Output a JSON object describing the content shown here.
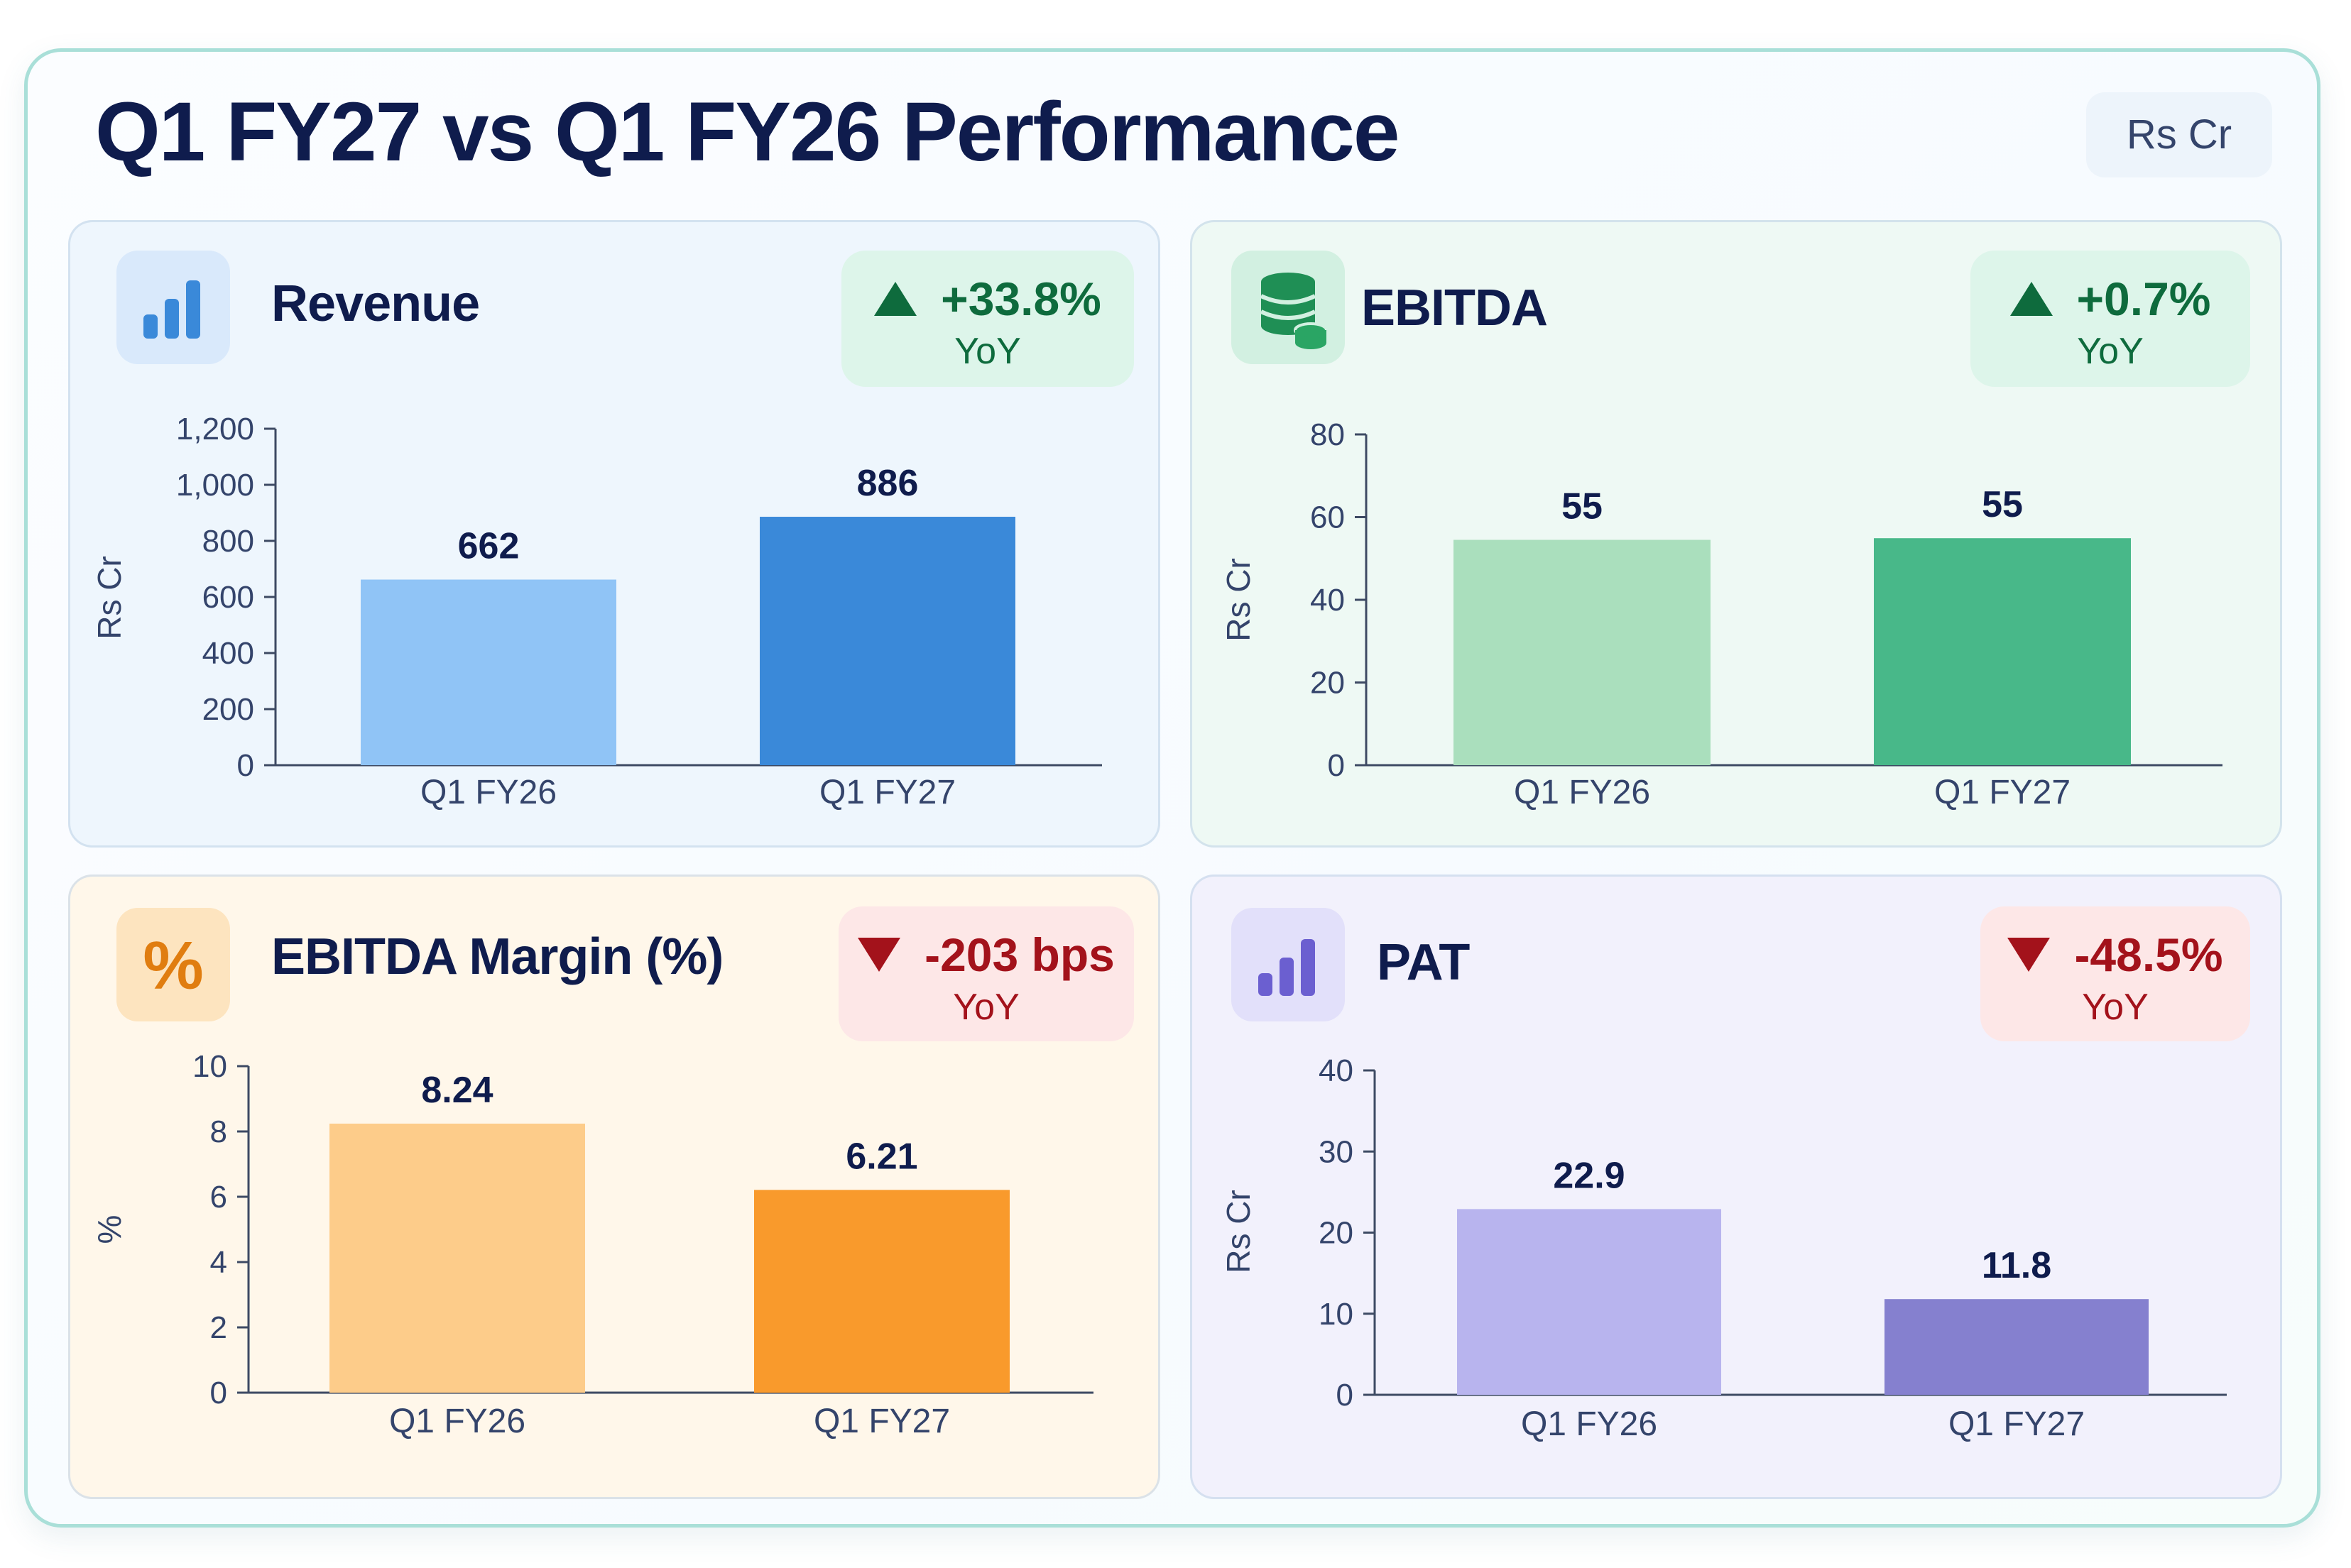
{
  "header": {
    "title": "Q1 FY27  vs Q1 FY26 Performance",
    "unit_badge": "Rs Cr"
  },
  "panels": [
    {
      "title": "Revenue",
      "icon": "bar-chart-icon",
      "change": "+33.8%",
      "change_sub": "YoY",
      "direction": "up"
    },
    {
      "title": "EBITDA",
      "icon": "coin-stack-icon",
      "change": "+0.7%",
      "change_sub": "YoY",
      "direction": "up"
    },
    {
      "title": "EBITDA Margin (%)",
      "icon": "percent-icon",
      "change": "-203 bps",
      "change_sub": "YoY",
      "direction": "down"
    },
    {
      "title": "PAT",
      "icon": "bar-chart-icon",
      "change": "-48.5%",
      "change_sub": "YoY",
      "direction": "down"
    }
  ],
  "chart_data": [
    {
      "type": "bar",
      "title": "Revenue",
      "categories": [
        "Q1 FY26",
        "Q1 FY27"
      ],
      "values": [
        662,
        886
      ],
      "value_labels": [
        "662",
        "886"
      ],
      "ylabel": "Rs Cr",
      "ylim": [
        0,
        1200
      ],
      "yticks": [
        0,
        200,
        400,
        600,
        800,
        1000,
        1200
      ],
      "ytick_labels": [
        "0",
        "200",
        "400",
        "600",
        "800",
        "1,000",
        "1,200"
      ],
      "colors": [
        "#90c4f6",
        "#3a89d9"
      ],
      "grid": false
    },
    {
      "type": "bar",
      "title": "EBITDA",
      "categories": [
        "Q1 FY26",
        "Q1 FY27"
      ],
      "values": [
        54.5,
        54.9
      ],
      "value_labels": [
        "55",
        "55"
      ],
      "ylabel": "Rs Cr",
      "ylim": [
        0,
        80
      ],
      "yticks": [
        0,
        20,
        40,
        60,
        80
      ],
      "ytick_labels": [
        "0",
        "20",
        "40",
        "60",
        "80"
      ],
      "colors": [
        "#aadfbd",
        "#48b889"
      ],
      "grid": false
    },
    {
      "type": "bar",
      "title": "EBITDA Margin (%)",
      "categories": [
        "Q1 FY26",
        "Q1 FY27"
      ],
      "values": [
        8.24,
        6.21
      ],
      "value_labels": [
        "8.24",
        "6.21"
      ],
      "ylabel": "%",
      "ylim": [
        0,
        10
      ],
      "yticks": [
        0,
        2,
        4,
        6,
        8,
        10
      ],
      "ytick_labels": [
        "0",
        "2",
        "4",
        "6",
        "8",
        "10"
      ],
      "colors": [
        "#fdcc8a",
        "#f99a2c"
      ],
      "grid": false
    },
    {
      "type": "bar",
      "title": "PAT",
      "categories": [
        "Q1 FY26",
        "Q1 FY27"
      ],
      "values": [
        22.9,
        11.8
      ],
      "value_labels": [
        "22.9",
        "11.8"
      ],
      "ylabel": "Rs Cr",
      "ylim": [
        0,
        40
      ],
      "yticks": [
        0,
        10,
        20,
        30,
        40
      ],
      "ytick_labels": [
        "0",
        "10",
        "20",
        "30",
        "40"
      ],
      "colors": [
        "#b8b4ee",
        "#8580cf"
      ],
      "grid": false
    }
  ],
  "colors": {
    "title": "#0f1c4d",
    "up": "#0e6b3d",
    "down": "#a3121b",
    "axis": "#34446b"
  }
}
